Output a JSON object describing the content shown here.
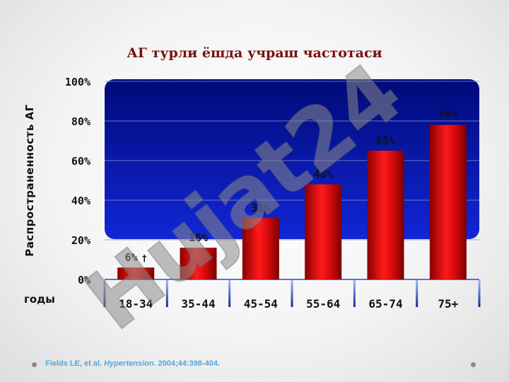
{
  "slide": {
    "title": "АГ турли ёшда учраш частотаси",
    "source_authors": "Fields LE, et al. ",
    "source_journal": "Hypertension",
    "source_rest": ". 2004;44:398-404.",
    "watermark": "Hujat24"
  },
  "chart_data": {
    "type": "bar",
    "ylabel": "Распространенность АГ",
    "xlabel": "годы",
    "categories": [
      "18-34",
      "35-44",
      "45-54",
      "55-64",
      "65-74",
      "75+"
    ],
    "values": [
      6,
      16,
      31,
      48,
      65,
      78
    ],
    "value_labels": [
      "6%",
      "16%",
      "31%",
      "48%",
      "65%",
      "78%"
    ],
    "first_label_note": "†",
    "yticks": [
      "0%",
      "20%",
      "40%",
      "60%",
      "80%",
      "100%"
    ],
    "ylim": [
      0,
      100
    ],
    "grid": true,
    "colors": {
      "bar": "#d40a0a",
      "plot_bg_top": "#000a78",
      "plot_bg_bottom": "#1226d6",
      "axis": "#1a3a9a"
    }
  }
}
